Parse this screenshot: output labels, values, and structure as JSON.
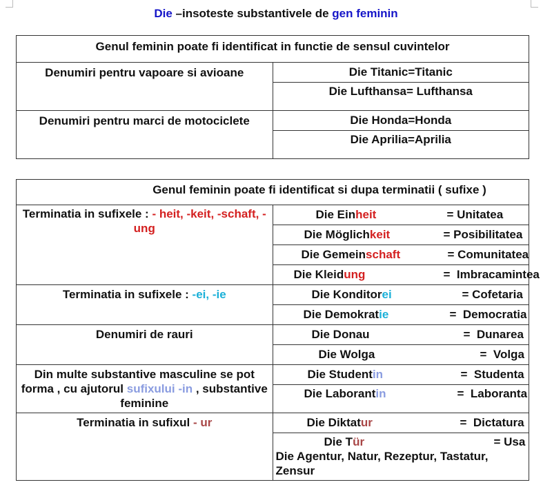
{
  "title": {
    "die": "Die",
    "middle": " –insoteste substantivele de ",
    "highlight": "gen feminin"
  },
  "table1": {
    "header": "Genul feminin poate fi identificat in functie de sensul cuvintelor",
    "groups": [
      {
        "label": "Denumiri pentru vapoare si avioane",
        "examples": [
          "Die Titanic=Titanic",
          "Die Lufthansa= Lufthansa"
        ]
      },
      {
        "label": "Denumiri pentru marci de motociclete",
        "examples": [
          "Die Honda=Honda",
          "Die Aprilia=Aprilia"
        ]
      }
    ]
  },
  "table2": {
    "header": "Genul feminin poate fi identificat si dupa terminatii ( sufixe )",
    "groups": [
      {
        "label_prefix": "Terminatia in sufixele : ",
        "label_suffix": "- heit, -keit, -schaft, -ung",
        "rows": [
          {
            "stem": "Die Ein",
            "ending": "heit",
            "translation": "= Unitatea"
          },
          {
            "stem": "Die Möglich",
            "ending": "keit",
            "translation": "= Posibilitatea"
          },
          {
            "stem": "Die Gemein",
            "ending": "schaft",
            "translation": "= Comunitatea"
          },
          {
            "stem": "Die Kleid",
            "ending": "ung",
            "translation": "=  Imbracamintea"
          }
        ]
      },
      {
        "label_prefix": "Terminatia in sufixele : ",
        "label_suffix": "-ei, -ie",
        "rows": [
          {
            "stem": "Die Konditor",
            "ending": "ei",
            "translation": "= Cofetaria"
          },
          {
            "stem": "Die Demokrat",
            "ending": "ie",
            "translation": "=  Democratia"
          }
        ]
      },
      {
        "label": "Denumiri de rauri",
        "rows": [
          {
            "stem": "Die Donau",
            "ending": "",
            "translation": "=  Dunarea"
          },
          {
            "stem": "Die Wolga",
            "ending": "",
            "translation": "=  Volga"
          }
        ]
      },
      {
        "label_prefix": "Din multe substantive masculine se pot forma , cu ajutorul ",
        "label_suffix": "sufixului -in",
        "label_end": " , substantive feminine",
        "rows": [
          {
            "stem": "Die Student",
            "ending": "in",
            "translation": "=  Studenta"
          },
          {
            "stem": "Die Laborant",
            "ending": "in",
            "translation": "=  Laboranta"
          }
        ]
      },
      {
        "label_prefix": "Terminatia in sufixul ",
        "label_suffix": "- ur",
        "rows": [
          {
            "stem": "Die Diktat",
            "ending": "ur",
            "translation": "=  Dictatura"
          },
          {
            "stem": "Die T",
            "ending": "ür",
            "translation": "= Usa"
          }
        ],
        "extra": "Die Agentur, Natur, Rezeptur, Tastatur, Zensur"
      }
    ]
  },
  "colors": {
    "die": "#1515c8",
    "feminin": "#1515c8",
    "heit": "#d42020",
    "ei": "#1ab0d8",
    "in": "#8a9ce0",
    "ur": "#a84646"
  }
}
